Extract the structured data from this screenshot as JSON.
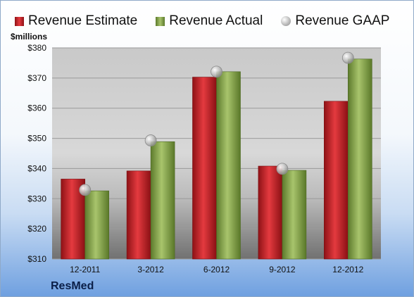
{
  "chart_data": {
    "type": "bar",
    "categories": [
      "12-2011",
      "3-2012",
      "6-2012",
      "9-2012",
      "12-2012"
    ],
    "series": [
      {
        "name": "Revenue Estimate",
        "kind": "bar",
        "color": "#c8191e",
        "values": [
          336.5,
          339.2,
          370.3,
          340.8,
          362.3
        ]
      },
      {
        "name": "Revenue Actual",
        "kind": "bar",
        "color": "#8cab52",
        "values": [
          332.6,
          348.9,
          372.1,
          339.4,
          376.3
        ]
      },
      {
        "name": "Revenue GAAP",
        "kind": "marker",
        "color": "#c0c0c0",
        "values": [
          332.9,
          349.3,
          372.1,
          339.9,
          376.7
        ]
      }
    ],
    "ylabel": "$millions",
    "ylim": [
      310,
      380
    ],
    "yticks": [
      "$310",
      "$320",
      "$330",
      "$340",
      "$350",
      "$360",
      "$370",
      "$380"
    ],
    "grid": true,
    "legend_position": "top",
    "brand": "ResMed"
  }
}
